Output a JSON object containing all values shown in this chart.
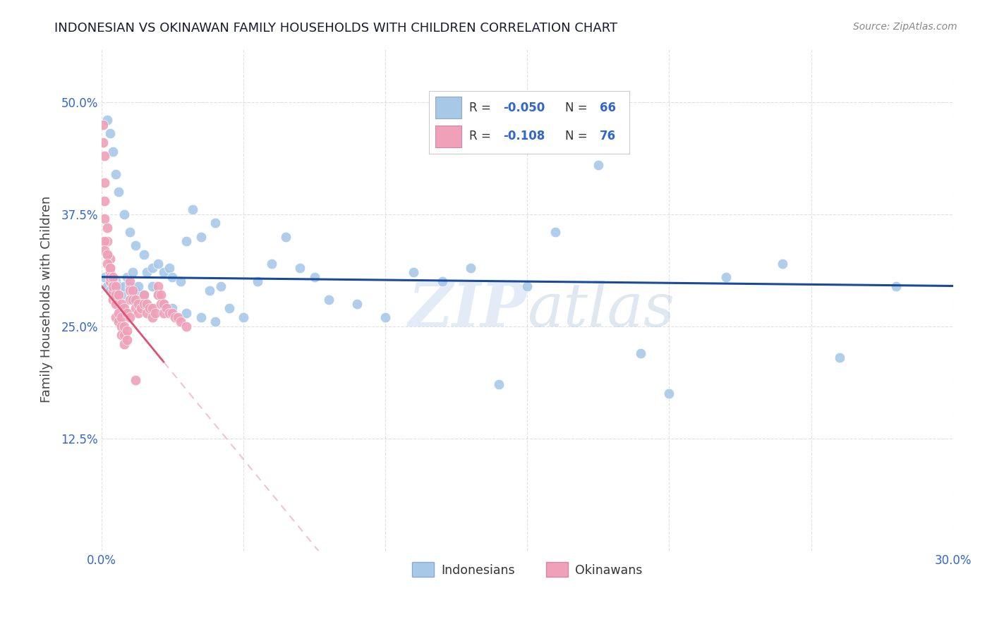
{
  "title": "INDONESIAN VS OKINAWAN FAMILY HOUSEHOLDS WITH CHILDREN CORRELATION CHART",
  "source": "Source: ZipAtlas.com",
  "ylabel": "Family Households with Children",
  "r_indonesian": "-0.050",
  "n_indonesian": "66",
  "r_okinawan": "-0.108",
  "n_okinawan": "76",
  "x_min": 0.0,
  "x_max": 0.3,
  "y_min": 0.0,
  "y_max": 0.56,
  "color_indonesian_dot": "#a8c8e8",
  "color_indonesian_line": "#1a4a9a",
  "color_okinawan_dot": "#f0a0b8",
  "color_okinawan_line_solid": "#e05070",
  "color_okinawan_line_dashed": "#f0a8c0",
  "color_r_text": "#3366cc",
  "watermark_color": "#d0dff0",
  "indonesian_x": [
    0.001,
    0.002,
    0.003,
    0.004,
    0.005,
    0.006,
    0.007,
    0.008,
    0.009,
    0.01,
    0.011,
    0.012,
    0.013,
    0.015,
    0.016,
    0.018,
    0.02,
    0.022,
    0.024,
    0.025,
    0.028,
    0.03,
    0.032,
    0.035,
    0.038,
    0.04,
    0.042,
    0.045,
    0.05,
    0.055,
    0.06,
    0.065,
    0.07,
    0.075,
    0.08,
    0.09,
    0.1,
    0.11,
    0.12,
    0.13,
    0.14,
    0.15,
    0.16,
    0.175,
    0.19,
    0.2,
    0.22,
    0.24,
    0.26,
    0.28,
    0.002,
    0.003,
    0.004,
    0.005,
    0.006,
    0.008,
    0.01,
    0.012,
    0.015,
    0.018,
    0.02,
    0.022,
    0.025,
    0.03,
    0.035,
    0.04
  ],
  "indonesian_y": [
    0.305,
    0.295,
    0.29,
    0.285,
    0.3,
    0.295,
    0.285,
    0.295,
    0.305,
    0.295,
    0.31,
    0.29,
    0.295,
    0.285,
    0.31,
    0.315,
    0.32,
    0.31,
    0.315,
    0.305,
    0.3,
    0.345,
    0.38,
    0.35,
    0.29,
    0.365,
    0.295,
    0.27,
    0.26,
    0.3,
    0.32,
    0.35,
    0.315,
    0.305,
    0.28,
    0.275,
    0.26,
    0.31,
    0.3,
    0.315,
    0.185,
    0.295,
    0.355,
    0.43,
    0.22,
    0.175,
    0.305,
    0.32,
    0.215,
    0.295,
    0.48,
    0.465,
    0.445,
    0.42,
    0.4,
    0.375,
    0.355,
    0.34,
    0.33,
    0.295,
    0.285,
    0.275,
    0.27,
    0.265,
    0.26,
    0.255
  ],
  "okinawan_x": [
    0.0005,
    0.0005,
    0.001,
    0.001,
    0.001,
    0.001,
    0.002,
    0.002,
    0.002,
    0.003,
    0.003,
    0.003,
    0.003,
    0.004,
    0.004,
    0.004,
    0.005,
    0.005,
    0.005,
    0.006,
    0.006,
    0.007,
    0.007,
    0.007,
    0.008,
    0.008,
    0.008,
    0.009,
    0.009,
    0.01,
    0.01,
    0.01,
    0.011,
    0.011,
    0.012,
    0.012,
    0.013,
    0.013,
    0.014,
    0.015,
    0.015,
    0.016,
    0.016,
    0.017,
    0.018,
    0.018,
    0.019,
    0.02,
    0.02,
    0.021,
    0.021,
    0.022,
    0.022,
    0.023,
    0.024,
    0.025,
    0.026,
    0.027,
    0.028,
    0.03,
    0.001,
    0.001,
    0.002,
    0.002,
    0.003,
    0.003,
    0.004,
    0.004,
    0.005,
    0.005,
    0.006,
    0.007,
    0.008,
    0.009,
    0.01,
    0.012
  ],
  "okinawan_y": [
    0.475,
    0.455,
    0.44,
    0.41,
    0.39,
    0.37,
    0.36,
    0.345,
    0.33,
    0.325,
    0.315,
    0.31,
    0.3,
    0.3,
    0.29,
    0.28,
    0.28,
    0.275,
    0.26,
    0.265,
    0.255,
    0.26,
    0.25,
    0.24,
    0.25,
    0.24,
    0.23,
    0.245,
    0.235,
    0.3,
    0.29,
    0.28,
    0.29,
    0.28,
    0.28,
    0.27,
    0.275,
    0.265,
    0.27,
    0.285,
    0.275,
    0.275,
    0.265,
    0.27,
    0.27,
    0.26,
    0.265,
    0.295,
    0.285,
    0.285,
    0.275,
    0.275,
    0.265,
    0.27,
    0.265,
    0.265,
    0.26,
    0.26,
    0.255,
    0.25,
    0.345,
    0.335,
    0.33,
    0.32,
    0.315,
    0.305,
    0.305,
    0.295,
    0.295,
    0.285,
    0.285,
    0.275,
    0.27,
    0.265,
    0.26,
    0.19
  ],
  "legend_r1": "R = ",
  "legend_val1": "-0.050",
  "legend_n1": "N = ",
  "legend_nval1": "66",
  "legend_r2": "R =  ",
  "legend_val2": "-0.108",
  "legend_n2": "N = ",
  "legend_nval2": "76"
}
